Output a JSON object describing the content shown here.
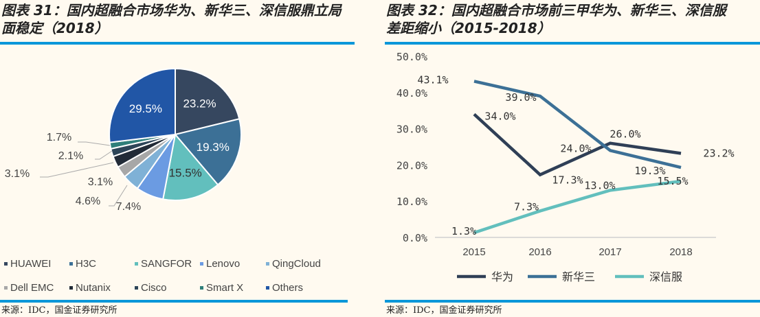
{
  "left": {
    "title_line1": "图表 31：国内超融合市场华为、新华三、深信服鼎立局",
    "title_line2": "面稳定（2018）",
    "source": "来源：IDC，国金证券研究所"
  },
  "right": {
    "title_line1": "图表 32：国内超融合市场前三甲华为、新华三、深信服",
    "title_line2": "差距缩小（2015-2018）",
    "source": "来源：IDC，国金证券研究所"
  },
  "chart_data": [
    {
      "type": "pie",
      "legend_position": "bottom",
      "slices": [
        {
          "name": "HUAWEI",
          "value": 23.2,
          "label": "23.2%",
          "color": "#36475f"
        },
        {
          "name": "H3C",
          "value": 19.3,
          "label": "19.3%",
          "color": "#3c7096"
        },
        {
          "name": "SANGFOR",
          "value": 15.5,
          "label": "15.5%",
          "color": "#62bfbd"
        },
        {
          "name": "Lenovo",
          "value": 7.4,
          "label": "7.4%",
          "color": "#6b9be2"
        },
        {
          "name": "QingCloud",
          "value": 4.6,
          "label": "4.6%",
          "color": "#7fb1d6"
        },
        {
          "name": "Dell EMC",
          "value": 3.1,
          "label": "3.1%",
          "color": "#a7a7a7"
        },
        {
          "name": "Nutanix",
          "value": 3.1,
          "label": "3.1%",
          "color": "#222b37"
        },
        {
          "name": "Cisco",
          "value": 2.1,
          "label": "2.1%",
          "color": "#2d4558"
        },
        {
          "name": "Smart X",
          "value": 1.7,
          "label": "1.7%",
          "color": "#2f7f7a"
        },
        {
          "name": "Others",
          "value": 29.5,
          "label": "29.5%",
          "color": "#2156a6"
        }
      ]
    },
    {
      "type": "line",
      "categories": [
        "2015",
        "2016",
        "2017",
        "2018"
      ],
      "ylim": [
        0,
        50
      ],
      "yticks": [
        "0.0%",
        "10.0%",
        "20.0%",
        "30.0%",
        "40.0%",
        "50.0%"
      ],
      "grid": false,
      "legend_position": "bottom",
      "series": [
        {
          "name": "华为",
          "values": [
            34.0,
            17.3,
            26.0,
            23.2
          ],
          "labels": [
            "34.0%",
            "17.3%",
            "26.0%",
            "23.2%"
          ],
          "color": "#2f3f56"
        },
        {
          "name": "新华三",
          "values": [
            43.1,
            39.0,
            24.0,
            19.3
          ],
          "labels": [
            "43.1%",
            "39.0%",
            "24.0%",
            "19.3%"
          ],
          "color": "#3c7096"
        },
        {
          "name": "深信服",
          "values": [
            1.3,
            7.3,
            13.0,
            15.5
          ],
          "labels": [
            "1.3%",
            "7.3%",
            "13.0%",
            "15.5%"
          ],
          "color": "#62bfbd"
        }
      ]
    }
  ]
}
